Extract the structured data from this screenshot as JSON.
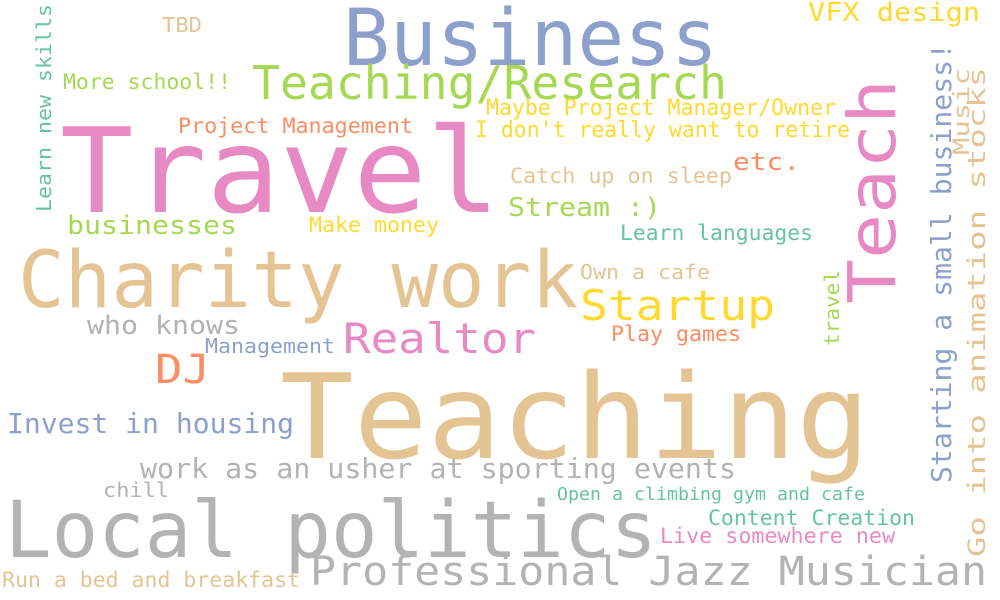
{
  "palette": {
    "pink": "#e78ac3",
    "tan": "#e5c494",
    "blue": "#8da0cb",
    "green": "#a6d854",
    "yellow": "#ffd92f",
    "orange": "#fc8d62",
    "teal": "#66c2a5",
    "gray": "#b3b3b3"
  },
  "words": [
    {
      "text": "Travel",
      "color": "pink"
    },
    {
      "text": "Teaching",
      "color": "tan"
    },
    {
      "text": "Business",
      "color": "blue"
    },
    {
      "text": "Charity work",
      "color": "tan"
    },
    {
      "text": "Local politics",
      "color": "gray"
    },
    {
      "text": "Teach",
      "color": "pink"
    },
    {
      "text": "Teaching/Research",
      "color": "green"
    },
    {
      "text": "Professional Jazz Musician",
      "color": "gray"
    },
    {
      "text": "Startup",
      "color": "yellow"
    },
    {
      "text": "Realtor",
      "color": "pink"
    },
    {
      "text": "DJ",
      "color": "orange"
    },
    {
      "text": "Starting a small business!",
      "color": "blue"
    },
    {
      "text": "Go into animation stocks",
      "color": "tan"
    },
    {
      "text": "work as an usher at sporting events",
      "color": "gray"
    },
    {
      "text": "Invest in housing",
      "color": "blue"
    },
    {
      "text": "VFX design",
      "color": "yellow"
    },
    {
      "text": "Learn new skills",
      "color": "teal"
    },
    {
      "text": "businesses",
      "color": "green"
    },
    {
      "text": "Stream :)",
      "color": "green"
    },
    {
      "text": "who knows",
      "color": "gray"
    },
    {
      "text": "Maybe Project Manager/Owner",
      "color": "yellow"
    },
    {
      "text": "I don't really want to retire",
      "color": "yellow"
    },
    {
      "text": "Music",
      "color": "tan"
    },
    {
      "text": "Project Management",
      "color": "orange"
    },
    {
      "text": "More school!!",
      "color": "green"
    },
    {
      "text": "etc.",
      "color": "orange"
    },
    {
      "text": "Catch up on sleep",
      "color": "tan"
    },
    {
      "text": "Learn languages",
      "color": "teal"
    },
    {
      "text": "Content Creation",
      "color": "teal"
    },
    {
      "text": "Live somewhere new",
      "color": "pink"
    },
    {
      "text": "Open a climbing gym and cafe",
      "color": "teal"
    },
    {
      "text": "Make money",
      "color": "yellow"
    },
    {
      "text": "Own a cafe",
      "color": "tan"
    },
    {
      "text": "Play games",
      "color": "orange"
    },
    {
      "text": "travel",
      "color": "green"
    },
    {
      "text": "Management",
      "color": "blue"
    },
    {
      "text": "Run a bed and breakfast",
      "color": "tan"
    },
    {
      "text": "chill",
      "color": "gray"
    },
    {
      "text": "TBD",
      "color": "tan"
    }
  ]
}
